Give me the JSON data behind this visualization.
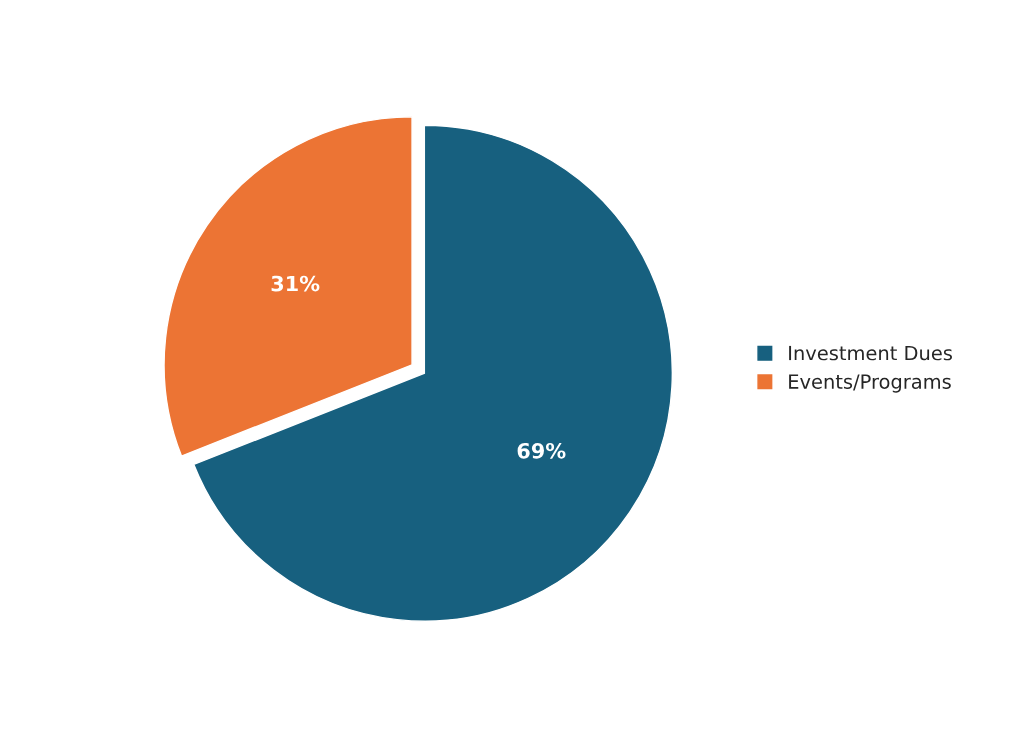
{
  "chart_data": {
    "type": "pie",
    "categories": [
      "Investment Dues",
      "Events/Programs"
    ],
    "values": [
      69,
      31
    ],
    "colors": [
      "#17607f",
      "#ec7434"
    ],
    "value_labels": [
      "69%",
      "31%"
    ],
    "legend": "right"
  }
}
